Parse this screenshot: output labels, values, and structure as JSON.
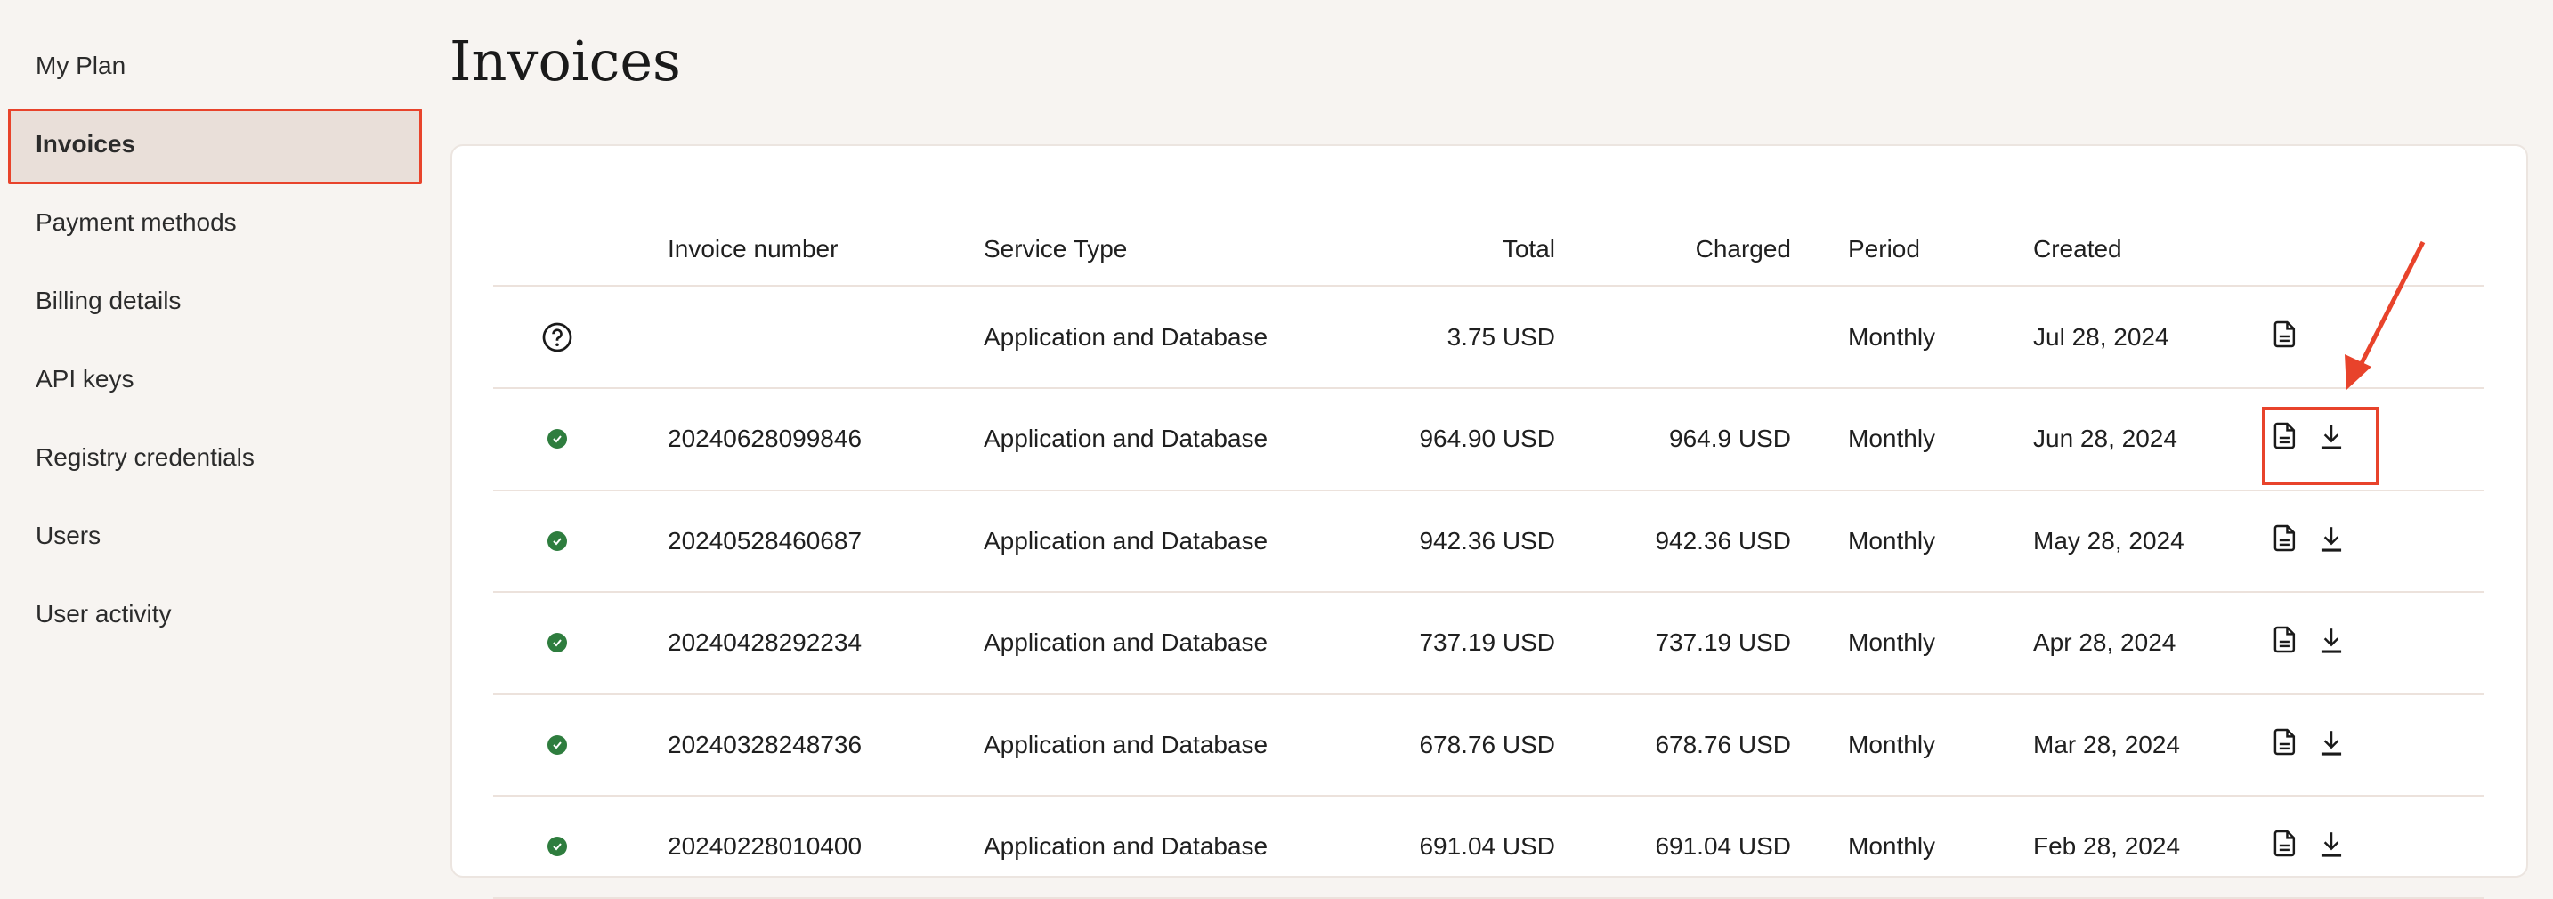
{
  "sidebar": {
    "items": [
      {
        "label": "My Plan"
      },
      {
        "label": "Invoices",
        "active": true
      },
      {
        "label": "Payment methods"
      },
      {
        "label": "Billing details"
      },
      {
        "label": "API keys"
      },
      {
        "label": "Registry credentials"
      },
      {
        "label": "Users"
      },
      {
        "label": "User activity"
      }
    ]
  },
  "page": {
    "title": "Invoices"
  },
  "table": {
    "headers": {
      "invoice_number": "Invoice number",
      "service_type": "Service Type",
      "total": "Total",
      "charged": "Charged",
      "period": "Period",
      "created": "Created"
    },
    "rows": [
      {
        "status": "unknown",
        "invoice_number": "",
        "service_type": "Application and Database",
        "total": "3.75 USD",
        "charged": "",
        "period": "Monthly",
        "created": "Jul 28, 2024",
        "download": false
      },
      {
        "status": "paid",
        "invoice_number": "20240628099846",
        "service_type": "Application and Database",
        "total": "964.90 USD",
        "charged": "964.9 USD",
        "period": "Monthly",
        "created": "Jun 28, 2024",
        "download": true
      },
      {
        "status": "paid",
        "invoice_number": "20240528460687",
        "service_type": "Application and Database",
        "total": "942.36 USD",
        "charged": "942.36 USD",
        "period": "Monthly",
        "created": "May 28, 2024",
        "download": true
      },
      {
        "status": "paid",
        "invoice_number": "20240428292234",
        "service_type": "Application and Database",
        "total": "737.19 USD",
        "charged": "737.19 USD",
        "period": "Monthly",
        "created": "Apr 28, 2024",
        "download": true
      },
      {
        "status": "paid",
        "invoice_number": "20240328248736",
        "service_type": "Application and Database",
        "total": "678.76 USD",
        "charged": "678.76 USD",
        "period": "Monthly",
        "created": "Mar 28, 2024",
        "download": true
      },
      {
        "status": "paid",
        "invoice_number": "20240228010400",
        "service_type": "Application and Database",
        "total": "691.04 USD",
        "charged": "691.04 USD",
        "period": "Monthly",
        "created": "Feb 28, 2024",
        "download": true
      }
    ]
  },
  "colors": {
    "accent": "#e8432b",
    "paid": "#2e7d3e",
    "background": "#f7f4f1"
  }
}
